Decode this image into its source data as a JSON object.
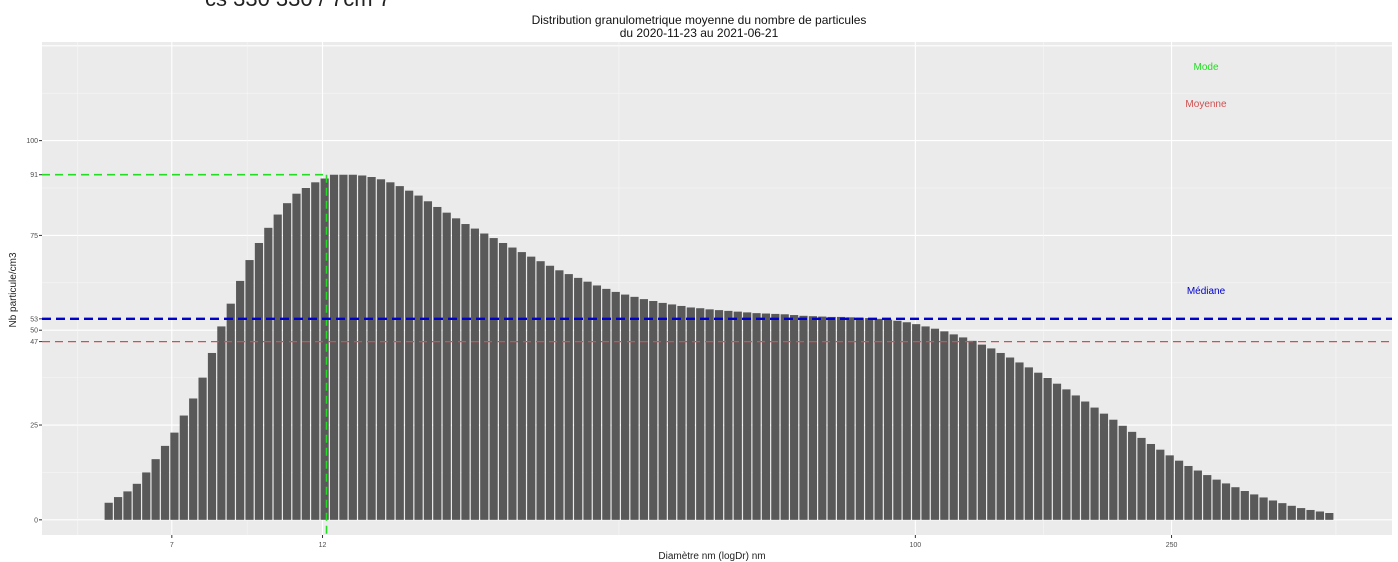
{
  "header": {
    "partial_text": "cs 330 330 / 7cm 7"
  },
  "chart_data": {
    "type": "bar",
    "title": "Distribution granulometrique moyenne du nombre de particules",
    "subtitle": "du 2020-11-23 au 2021-06-21",
    "xlabel": "Diamètre nm (logDr) nm",
    "ylabel": "Nb particule/cm3",
    "x_scale": "log",
    "x_ticks": [
      7,
      12,
      100,
      250
    ],
    "x_tick_labels": [
      "7",
      "12",
      "100",
      "250"
    ],
    "y_ticks": [
      0,
      25,
      47,
      50,
      53,
      75,
      91,
      100
    ],
    "y_tick_labels": [
      "0",
      "25",
      "47",
      "50",
      "53",
      "75",
      "91",
      "100"
    ],
    "xlim": [
      4.4,
      550
    ],
    "ylim": [
      -4,
      126
    ],
    "grid": true,
    "background": "#ebebeb",
    "bar_color": "#595959",
    "values": [
      4.5,
      6,
      7.5,
      9.5,
      12.5,
      16,
      19.5,
      23,
      27.5,
      32,
      37.5,
      44,
      51,
      57,
      63,
      68.5,
      73,
      77,
      80.5,
      83.5,
      86,
      87.5,
      89,
      90,
      91,
      91,
      91,
      90.8,
      90.4,
      89.8,
      89,
      88,
      86.8,
      85.5,
      84,
      82.5,
      81,
      79.5,
      78,
      76.8,
      75.5,
      74.3,
      73,
      71.8,
      70.6,
      69.4,
      68.2,
      67,
      65.8,
      64.8,
      63.8,
      62.8,
      61.8,
      60.9,
      60.1,
      59.4,
      58.8,
      58.2,
      57.7,
      57.2,
      56.8,
      56.4,
      56,
      55.8,
      55.5,
      55.3,
      55.1,
      54.9,
      54.7,
      54.5,
      54.4,
      54.3,
      54.2,
      54,
      53.8,
      53.7,
      53.6,
      53.5,
      53.5,
      53.4,
      53.3,
      53.2,
      53,
      52.8,
      52.5,
      52.1,
      51.6,
      51,
      50.4,
      49.7,
      48.9,
      48.1,
      47.2,
      46.2,
      45.2,
      44,
      42.8,
      41.5,
      40.2,
      38.8,
      37.4,
      35.9,
      34.4,
      32.8,
      31.2,
      29.6,
      28,
      26.4,
      24.8,
      23.2,
      21.6,
      20,
      18.5,
      17,
      15.6,
      14.2,
      13,
      11.8,
      10.6,
      9.6,
      8.6,
      7.6,
      6.7,
      5.9,
      5.1,
      4.4,
      3.7,
      3.1,
      2.6,
      2.2,
      1.8
    ],
    "reference_lines": [
      {
        "name": "Mode",
        "value": 91,
        "color": "#22dd22"
      },
      {
        "name": "Médiane",
        "value": 53,
        "color": "#0000cc"
      },
      {
        "name": "Moyenne",
        "value": 47,
        "color": "#d05050"
      }
    ],
    "mode_diameter": 12
  }
}
